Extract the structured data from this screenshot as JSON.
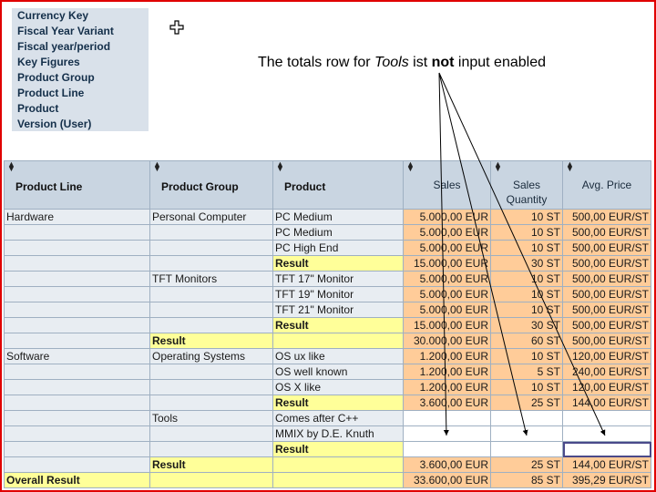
{
  "filters": [
    "Currency Key",
    "Fiscal Year Variant",
    "Fiscal year/period",
    "Key Figures",
    "Product Group",
    "Product Line",
    "Product",
    "Version (User)"
  ],
  "annotation": {
    "pre": "The totals row for ",
    "italic": "Tools",
    "mid": " ist ",
    "bold": "not",
    "post": " input enabled"
  },
  "columns": {
    "product_line": "Product Line",
    "product_group": "Product Group",
    "product": "Product",
    "sales": "Sales",
    "sales_qty": "Sales Quantity",
    "avg_price": "Avg. Price"
  },
  "rows": [
    {
      "line": "Hardware",
      "group": "Personal Computer",
      "product": "PC Medium",
      "sales": "5.000,00 EUR",
      "qty": "10 ST",
      "price": "500,00 EUR/ST",
      "kind": "data"
    },
    {
      "line": "",
      "group": "",
      "product": "PC Medium",
      "sales": "5.000,00 EUR",
      "qty": "10 ST",
      "price": "500,00 EUR/ST",
      "kind": "data"
    },
    {
      "line": "",
      "group": "",
      "product": "PC High End",
      "sales": "5.000,00 EUR",
      "qty": "10 ST",
      "price": "500,00 EUR/ST",
      "kind": "data"
    },
    {
      "line": "",
      "group": "",
      "product": "Result",
      "sales": "15.000,00 EUR",
      "qty": "30 ST",
      "price": "500,00 EUR/ST",
      "kind": "prodres"
    },
    {
      "line": "",
      "group": "TFT Monitors",
      "product": "TFT 17\" Monitor",
      "sales": "5.000,00 EUR",
      "qty": "10 ST",
      "price": "500,00 EUR/ST",
      "kind": "data"
    },
    {
      "line": "",
      "group": "",
      "product": "TFT 19\" Monitor",
      "sales": "5.000,00 EUR",
      "qty": "10 ST",
      "price": "500,00 EUR/ST",
      "kind": "data"
    },
    {
      "line": "",
      "group": "",
      "product": "TFT 21\" Monitor",
      "sales": "5.000,00 EUR",
      "qty": "10 ST",
      "price": "500,00 EUR/ST",
      "kind": "data"
    },
    {
      "line": "",
      "group": "",
      "product": "Result",
      "sales": "15.000,00 EUR",
      "qty": "30 ST",
      "price": "500,00 EUR/ST",
      "kind": "prodres"
    },
    {
      "line": "",
      "group": "Result",
      "product": "",
      "sales": "30.000,00 EUR",
      "qty": "60 ST",
      "price": "500,00 EUR/ST",
      "kind": "groupres"
    },
    {
      "line": "Software",
      "group": "Operating Systems",
      "product": "OS ux like",
      "sales": "1.200,00 EUR",
      "qty": "10 ST",
      "price": "120,00 EUR/ST",
      "kind": "data"
    },
    {
      "line": "",
      "group": "",
      "product": "OS well known",
      "sales": "1.200,00 EUR",
      "qty": "5 ST",
      "price": "240,00 EUR/ST",
      "kind": "data"
    },
    {
      "line": "",
      "group": "",
      "product": "OS X like",
      "sales": "1.200,00 EUR",
      "qty": "10 ST",
      "price": "120,00 EUR/ST",
      "kind": "data"
    },
    {
      "line": "",
      "group": "",
      "product": "Result",
      "sales": "3.600,00 EUR",
      "qty": "25 ST",
      "price": "144,00 EUR/ST",
      "kind": "prodres"
    },
    {
      "line": "",
      "group": "Tools",
      "product": "Comes after C++",
      "sales": "",
      "qty": "",
      "price": "",
      "kind": "empty"
    },
    {
      "line": "",
      "group": "",
      "product": "MMIX by D.E. Knuth",
      "sales": "",
      "qty": "",
      "price": "",
      "kind": "empty"
    },
    {
      "line": "",
      "group": "",
      "product": "Result",
      "sales": "",
      "qty": "",
      "price": "",
      "kind": "toolsres"
    },
    {
      "line": "",
      "group": "Result",
      "product": "",
      "sales": "3.600,00 EUR",
      "qty": "25 ST",
      "price": "144,00 EUR/ST",
      "kind": "groupres"
    },
    {
      "line": "Overall Result",
      "group": "",
      "product": "",
      "sales": "33.600,00 EUR",
      "qty": "85 ST",
      "price": "395,29 EUR/ST",
      "kind": "overall"
    }
  ]
}
